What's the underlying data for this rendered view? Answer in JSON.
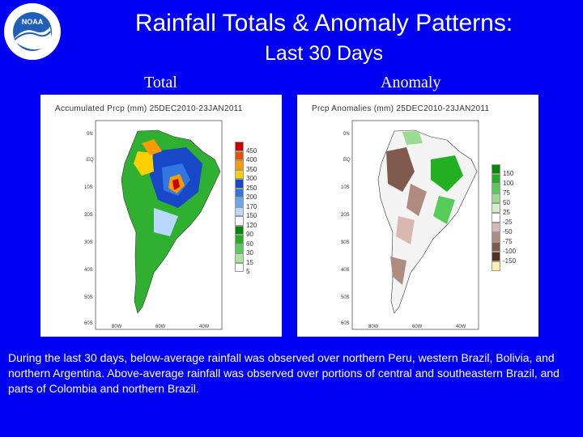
{
  "title": {
    "line1": "Rainfall Totals & Anomaly Patterns:",
    "line2": "Last 30 Days"
  },
  "panels": {
    "total": {
      "label": "Total",
      "map_title": "Accumulated Prcp (mm) 25DEC2010-23JAN2011",
      "lat_ticks": [
        "0N",
        "EQ",
        "10S",
        "20S",
        "30S",
        "40S",
        "50S",
        "60S"
      ],
      "lon_ticks": [
        "80W",
        "60W",
        "40W"
      ],
      "legend": [
        "450",
        "400",
        "350",
        "300",
        "250",
        "200",
        "170",
        "150",
        "120",
        "90",
        "60",
        "30",
        "15",
        "5"
      ],
      "legend_colors": [
        "#c80000",
        "#e85000",
        "#ff9a00",
        "#ffd000",
        "#1848c8",
        "#3078e0",
        "#6aa6f0",
        "#b8d8ff",
        "#ffffff",
        "#008a00",
        "#22b022",
        "#58cc58",
        "#a8e6a0",
        "#ffffff"
      ]
    },
    "anomaly": {
      "label": "Anomaly",
      "map_title": "Prcp Anomalies (mm) 25DEC2010-23JAN2011",
      "lat_ticks": [
        "0N",
        "EQ",
        "10S",
        "20S",
        "30S",
        "40S",
        "50S",
        "60S"
      ],
      "lon_ticks": [
        "80W",
        "60W",
        "40W"
      ],
      "legend": [
        "150",
        "100",
        "75",
        "50",
        "25",
        "-25",
        "-50",
        "-75",
        "-100",
        "-150"
      ],
      "legend_colors": [
        "#008a00",
        "#22b022",
        "#58cc58",
        "#98dc90",
        "#d2f0cc",
        "#ffffff",
        "#d8b8b0",
        "#b08c80",
        "#805a4c",
        "#503020",
        "#fff0b0"
      ]
    }
  },
  "description": "During the last 30 days, below-average rainfall was observed over northern Peru, western Brazil, Bolivia, and northern Argentina. Above-average rainfall was observed over portions of central and southeastern Brazil, and parts of Colombia and northern Brazil.",
  "colors": {
    "background": "#0000f2",
    "text": "#ffffff",
    "noaa_blue": "#1f5fb8"
  }
}
